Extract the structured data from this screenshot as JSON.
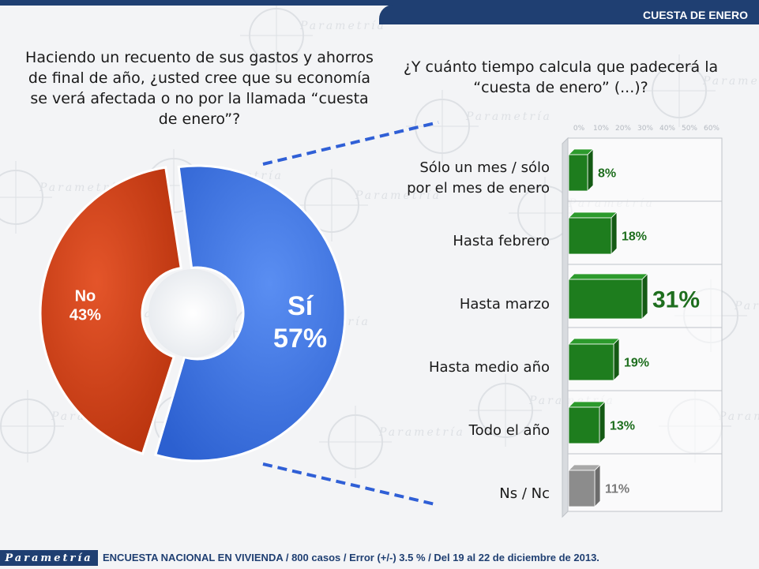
{
  "header": {
    "section_title": "CUESTA DE ENERO",
    "brand": "Parametría"
  },
  "questions": {
    "left": "Haciendo un recuento de sus gastos y ahorros de final de año, ¿usted cree que su economía se verá afectada o no por la llamada “cuesta de enero”?",
    "right": "¿Y cuánto tiempo calcula que padecerá la “cuesta de enero” (...)?"
  },
  "footer": {
    "brand": "Parametría",
    "note": "ENCUESTA NACIONAL EN VIVIENDA / 800 casos / Error (+/-) 3.5 % / Del 19 al 22 de diciembre de 2013."
  },
  "chart_data": [
    {
      "type": "pie",
      "variant": "donut",
      "categories": [
        "No",
        "Sí"
      ],
      "values": [
        43,
        57
      ],
      "value_labels": [
        "43%",
        "57%"
      ],
      "colors": [
        "#d03a12",
        "#3a72e6"
      ]
    },
    {
      "type": "bar",
      "orientation": "horizontal",
      "categories": [
        "Sólo un mes / sólo por el mes de enero",
        "Hasta febrero",
        "Hasta marzo",
        "Hasta medio año",
        "Todo el año",
        "Ns / Nc"
      ],
      "category_lines": [
        [
          "Sólo un mes / sólo",
          "por el mes de enero"
        ],
        [
          "Hasta febrero"
        ],
        [
          "Hasta marzo"
        ],
        [
          "Hasta medio año"
        ],
        [
          "Todo el año"
        ],
        [
          "Ns / Nc"
        ]
      ],
      "values": [
        8,
        18,
        31,
        19,
        13,
        11
      ],
      "value_labels": [
        "8%",
        "18%",
        "31%",
        "19%",
        "13%",
        "11%"
      ],
      "colors": [
        "#1e7d1e",
        "#1e7d1e",
        "#1e7d1e",
        "#1e7d1e",
        "#1e7d1e",
        "#8c8c8c"
      ],
      "highlight_index": 2,
      "xlim": [
        0,
        60
      ],
      "ticks": [
        "0%",
        "10%",
        "20%",
        "30%",
        "40%",
        "50%",
        "60%"
      ],
      "grid": true
    }
  ]
}
